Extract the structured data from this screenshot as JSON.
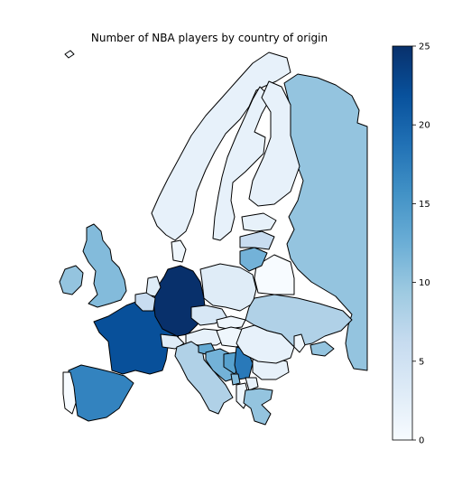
{
  "chart_data": {
    "type": "choropleth",
    "title": "Number of NBA players by country of origin",
    "colormap": "Blues",
    "colorbar": {
      "min": 0,
      "max": 25,
      "ticks": [
        0,
        5,
        10,
        15,
        20,
        25
      ]
    },
    "regions": [
      {
        "name": "Russia",
        "value": 10
      },
      {
        "name": "Norway",
        "value": 2
      },
      {
        "name": "Sweden",
        "value": 2
      },
      {
        "name": "Finland",
        "value": 2
      },
      {
        "name": "United Kingdom",
        "value": 11
      },
      {
        "name": "Ireland",
        "value": 10
      },
      {
        "name": "Iceland",
        "value": 0
      },
      {
        "name": "France",
        "value": 22
      },
      {
        "name": "Spain",
        "value": 17
      },
      {
        "name": "Portugal",
        "value": 0
      },
      {
        "name": "Germany",
        "value": 25
      },
      {
        "name": "Netherlands",
        "value": 3
      },
      {
        "name": "Belgium",
        "value": 6
      },
      {
        "name": "Switzerland",
        "value": 3
      },
      {
        "name": "Austria",
        "value": 2
      },
      {
        "name": "Denmark",
        "value": 1
      },
      {
        "name": "Poland",
        "value": 3
      },
      {
        "name": "Czech Republic",
        "value": 4
      },
      {
        "name": "Slovakia",
        "value": 1
      },
      {
        "name": "Hungary",
        "value": 1
      },
      {
        "name": "Ukraine",
        "value": 8
      },
      {
        "name": "Belarus",
        "value": 0
      },
      {
        "name": "Lithuania",
        "value": 12
      },
      {
        "name": "Latvia",
        "value": 6
      },
      {
        "name": "Estonia",
        "value": 2
      },
      {
        "name": "Italy",
        "value": 8
      },
      {
        "name": "Slovenia",
        "value": 13
      },
      {
        "name": "Croatia",
        "value": 12
      },
      {
        "name": "Bosnia and Herzegovina",
        "value": 14
      },
      {
        "name": "Serbia",
        "value": 18
      },
      {
        "name": "Montenegro",
        "value": 11
      },
      {
        "name": "Macedonia",
        "value": 2
      },
      {
        "name": "Albania",
        "value": 1
      },
      {
        "name": "Greece",
        "value": 10
      },
      {
        "name": "Bulgaria",
        "value": 2
      },
      {
        "name": "Romania",
        "value": 2
      },
      {
        "name": "Moldova",
        "value": 1
      },
      {
        "name": "Georgia",
        "value": 10
      }
    ]
  }
}
